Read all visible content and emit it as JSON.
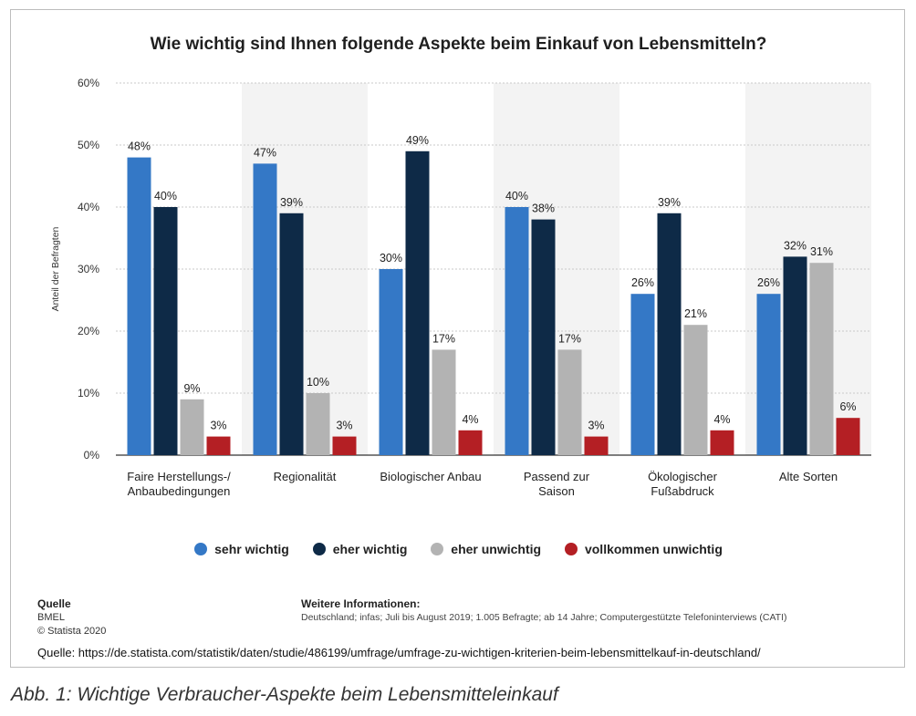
{
  "chart_data": {
    "type": "bar",
    "title": "Wie wichtig sind Ihnen folgende Aspekte beim Einkauf von Lebensmitteln?",
    "ylabel": "Anteil der Befragten",
    "xlabel": "",
    "ylim": [
      0,
      60
    ],
    "yticks": [
      "0%",
      "10%",
      "20%",
      "30%",
      "40%",
      "50%",
      "60%"
    ],
    "grid": true,
    "legend_position": "bottom",
    "categories": [
      [
        "Faire Herstellungs-/",
        "Anbaubedingungen"
      ],
      [
        "Regionalität"
      ],
      [
        "Biologischer Anbau"
      ],
      [
        "Passend zur",
        "Saison"
      ],
      [
        "Ökologischer",
        "Fußabdruck"
      ],
      [
        "Alte Sorten"
      ]
    ],
    "series": [
      {
        "name": "sehr wichtig",
        "color": "#3478c6",
        "values": [
          48,
          47,
          30,
          40,
          26,
          26
        ]
      },
      {
        "name": "eher wichtig",
        "color": "#0e2a47",
        "values": [
          40,
          39,
          49,
          38,
          39,
          32
        ]
      },
      {
        "name": "eher unwichtig",
        "color": "#b3b3b3",
        "values": [
          9,
          10,
          17,
          17,
          21,
          31
        ]
      },
      {
        "name": "vollkommen unwichtig",
        "color": "#b41f24",
        "values": [
          3,
          3,
          4,
          3,
          4,
          6
        ]
      }
    ]
  },
  "source": {
    "header": "Quelle",
    "line1": "BMEL",
    "line2": "© Statista 2020"
  },
  "info": {
    "header": "Weitere Informationen:",
    "text": "Deutschland; infas; Juli bis August 2019; 1.005 Befragte; ab 14 Jahre; Computergestützte Telefoninterviews (CATI)"
  },
  "url_line": "Quelle: https://de.statista.com/statistik/daten/studie/486199/umfrage/umfrage-zu-wichtigen-kriterien-beim-lebensmittelkauf-in-deutschland/",
  "caption": "Abb. 1: Wichtige Verbraucher-Aspekte beim Lebensmitteleinkauf"
}
